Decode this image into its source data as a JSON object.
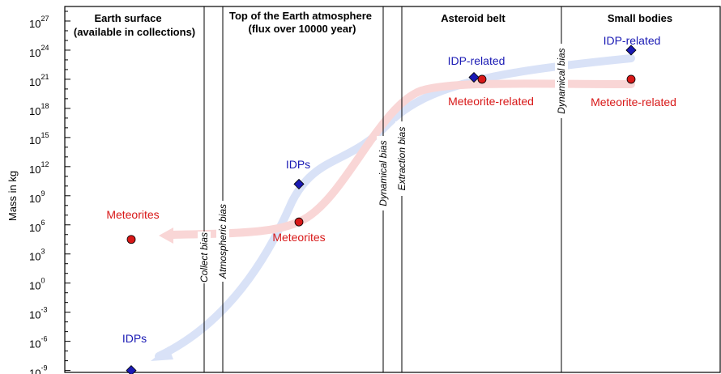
{
  "chart_data": {
    "type": "scatter",
    "ylabel": "Mass in kg",
    "yscale": "log",
    "ylim_exponent": [
      -9.2,
      28.5
    ],
    "ytick_base": "10",
    "yticks": [
      {
        "exp": "27",
        "value": 27
      },
      {
        "exp": "24",
        "value": 24
      },
      {
        "exp": "21",
        "value": 21
      },
      {
        "exp": "18",
        "value": 18
      },
      {
        "exp": "15",
        "value": 15
      },
      {
        "exp": "12",
        "value": 12
      },
      {
        "exp": "9",
        "value": 9
      },
      {
        "exp": "6",
        "value": 6
      },
      {
        "exp": "3",
        "value": 3
      },
      {
        "exp": "0",
        "value": 0
      },
      {
        "exp": "-3",
        "value": -3
      },
      {
        "exp": "-6",
        "value": -6
      },
      {
        "exp": "-9",
        "value": -9
      }
    ],
    "regions": [
      {
        "title_line1": "Earth surface",
        "title_line2": "(available in collections)"
      },
      {
        "title_line1": "Top of the Earth atmosphere",
        "title_line2": "(flux over 10000 year)"
      },
      {
        "title_line1": "Asteroid belt",
        "title_line2": ""
      },
      {
        "title_line1": "Small bodies",
        "title_line2": ""
      }
    ],
    "biases": [
      {
        "label": "Collect bias"
      },
      {
        "label": "Atmospheric bias"
      },
      {
        "label": "Dynamical bias"
      },
      {
        "label": "Extraction bias"
      },
      {
        "label": "Dynamical bias"
      }
    ],
    "series": [
      {
        "name": "IDP",
        "color": "#1a1ab4",
        "marker": "diamond",
        "points": [
          {
            "location": "Earth surface",
            "log10_mass": -9,
            "label": "IDPs"
          },
          {
            "location": "Top of the Earth atmosphere",
            "log10_mass": 10.2,
            "label": "IDPs"
          },
          {
            "location": "Asteroid belt",
            "log10_mass": 21.2,
            "label": "IDP-related"
          },
          {
            "location": "Small bodies",
            "log10_mass": 24,
            "label": "IDP-related"
          }
        ]
      },
      {
        "name": "Meteorite",
        "color": "#d81818",
        "marker": "circle",
        "points": [
          {
            "location": "Earth surface",
            "log10_mass": 4.5,
            "label": "Meteorites"
          },
          {
            "location": "Top of the Earth atmosphere",
            "log10_mass": 6.3,
            "label": "Meteorites"
          },
          {
            "location": "Asteroid belt",
            "log10_mass": 21,
            "label": "Meteorite-related"
          },
          {
            "location": "Small bodies",
            "log10_mass": 21,
            "label": "Meteorite-related"
          }
        ]
      }
    ],
    "colors": {
      "idp_arrow": "#d9e2f7",
      "meteorite_arrow": "#f9d6d6"
    }
  }
}
